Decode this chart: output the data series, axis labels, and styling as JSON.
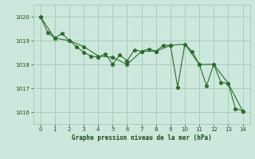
{
  "series1_x": [
    0,
    1,
    2,
    3,
    4,
    5,
    6,
    7,
    8,
    9,
    10,
    11,
    12,
    13,
    14
  ],
  "series1_y": [
    1020.0,
    1019.1,
    1019.0,
    1018.75,
    1018.35,
    1018.3,
    1018.0,
    1018.55,
    1018.55,
    1018.8,
    1018.85,
    1018.0,
    1018.0,
    1017.2,
    1016.05
  ],
  "series2_x": [
    0,
    0.5,
    1,
    1.5,
    2,
    2.5,
    3,
    3.5,
    4,
    4.5,
    5,
    5.5,
    6,
    6.5,
    7,
    7.5,
    8,
    8.5,
    9,
    9.5,
    10,
    10.5,
    11,
    11.5,
    12,
    12.5,
    13,
    13.5,
    14
  ],
  "series2_y": [
    1020.0,
    1019.35,
    1019.1,
    1019.3,
    1019.0,
    1018.75,
    1018.5,
    1018.35,
    1018.3,
    1018.45,
    1018.0,
    1018.4,
    1018.15,
    1018.6,
    1018.55,
    1018.65,
    1018.55,
    1018.8,
    1018.8,
    1017.05,
    1018.85,
    1018.55,
    1018.0,
    1017.1,
    1018.0,
    1017.25,
    1017.2,
    1016.15,
    1016.05
  ],
  "line_color": "#2d6a2d",
  "marker_color": "#2d6a2d",
  "bg_color": "#cce8dc",
  "grid_color": "#aaccbb",
  "text_color": "#1a4a1a",
  "title": "Graphe pression niveau de la mer (hPa)",
  "ylim": [
    1015.5,
    1020.5
  ],
  "xlim": [
    -0.5,
    14.5
  ],
  "yticks": [
    1016,
    1017,
    1018,
    1019,
    1020
  ],
  "xticks": [
    0,
    1,
    2,
    3,
    4,
    5,
    6,
    7,
    8,
    9,
    10,
    11,
    12,
    13,
    14
  ]
}
